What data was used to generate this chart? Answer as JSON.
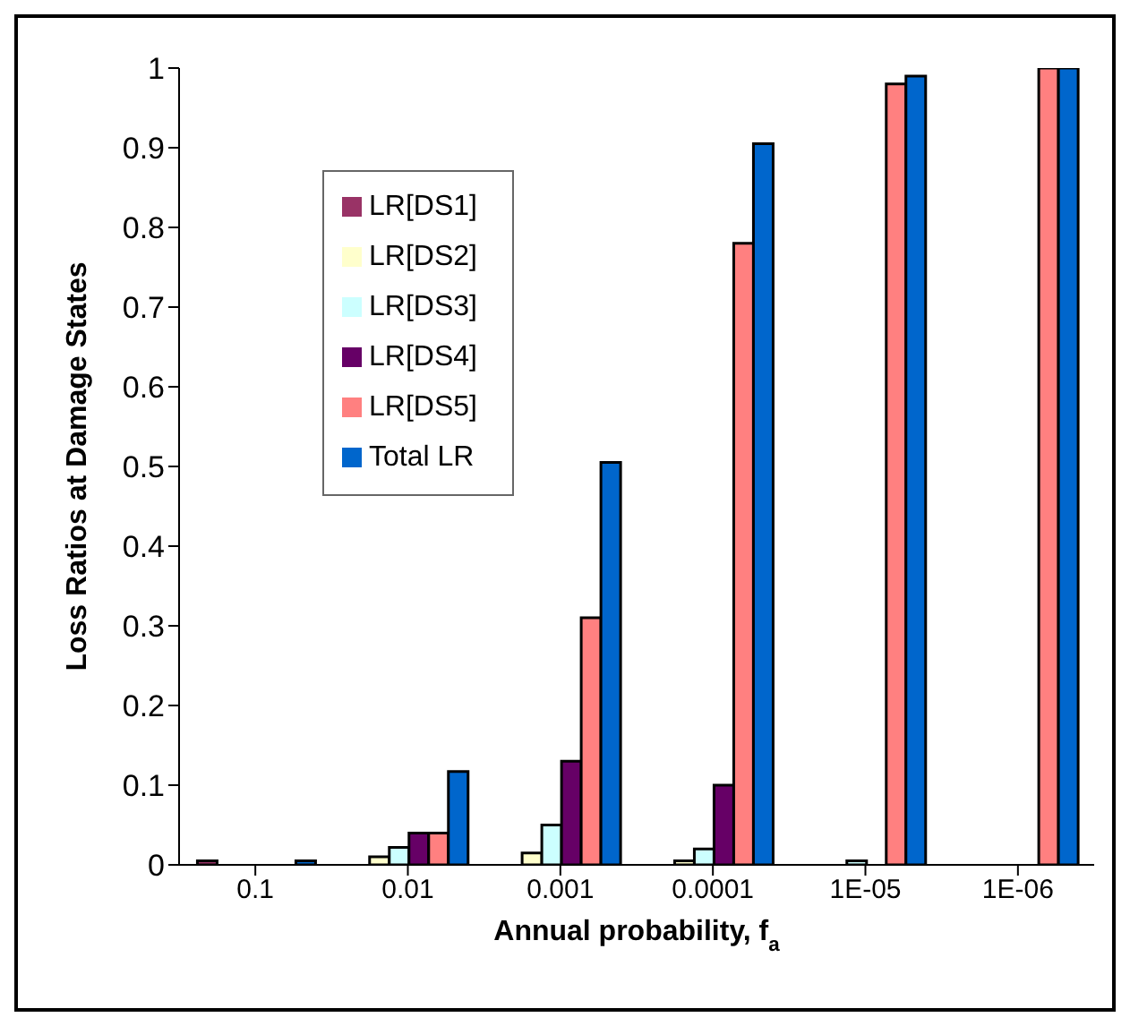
{
  "chart_data": {
    "type": "bar",
    "xlabel": "Annual probability, f$_{a}$",
    "ylabel": "Loss Ratios at Damage States",
    "categories": [
      "0.1",
      "0.01",
      "0.001",
      "0.0001",
      "1E-05",
      "1E-06"
    ],
    "series": [
      {
        "name": "LR[DS1]",
        "color": "#993366",
        "values": [
          0.005,
          0,
          0,
          0,
          0,
          0
        ]
      },
      {
        "name": "LR[DS2]",
        "color": "#ffffcc",
        "values": [
          0,
          0.01,
          0.015,
          0.005,
          0,
          0
        ]
      },
      {
        "name": "LR[DS3]",
        "color": "#ccffff",
        "values": [
          0,
          0.022,
          0.05,
          0.02,
          0.005,
          0
        ]
      },
      {
        "name": "LR[DS4]",
        "color": "#660066",
        "values": [
          0,
          0.04,
          0.13,
          0.1,
          0,
          0
        ]
      },
      {
        "name": "LR[DS5]",
        "color": "#ff8080",
        "values": [
          0,
          0.04,
          0.31,
          0.78,
          0.98,
          1
        ]
      },
      {
        "name": "Total LR",
        "color": "#0066cc",
        "values": [
          0.005,
          0.117,
          0.505,
          0.905,
          0.99,
          1
        ]
      }
    ],
    "ylim": [
      0,
      1
    ],
    "yticks": [
      0,
      0.1,
      0.2,
      0.3,
      0.4,
      0.5,
      0.6,
      0.7,
      0.8,
      0.9,
      1
    ],
    "grid": false,
    "legend": "top left"
  }
}
